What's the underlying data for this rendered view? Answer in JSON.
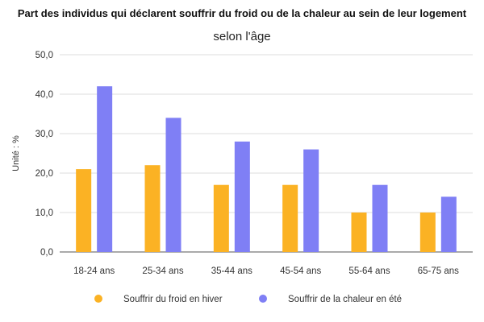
{
  "chart_data": {
    "type": "bar",
    "title": "Part des individus qui déclarent souffrir du froid ou de la chaleur au sein de leur logement",
    "subtitle": "selon l'âge",
    "ylabel": "Unité : %",
    "xlabel": "",
    "ylim": [
      0,
      50
    ],
    "yticks": [
      "0,0",
      "10,0",
      "20,0",
      "30,0",
      "40,0",
      "50,0"
    ],
    "grid": true,
    "legend_position": "bottom",
    "categories": [
      "18-24 ans",
      "25-34 ans",
      "35-44 ans",
      "45-54 ans",
      "55-64 ans",
      "65-75 ans"
    ],
    "series": [
      {
        "name": "Souffrir du froid en hiver",
        "color": "#FBB224",
        "values": [
          21,
          22,
          17,
          17,
          10,
          10
        ]
      },
      {
        "name": "Souffrir de la chaleur en été",
        "color": "#7F7FF5",
        "values": [
          42,
          34,
          28,
          26,
          17,
          14
        ]
      }
    ]
  }
}
